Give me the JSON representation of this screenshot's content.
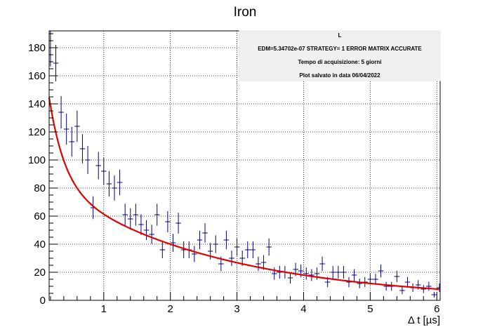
{
  "chart_data": {
    "type": "scatter",
    "title": "Iron",
    "xlabel": "Δ t [µs]",
    "ylabel": "",
    "xlim": [
      0.18,
      6.05
    ],
    "ylim": [
      0,
      192
    ],
    "x_ticks": [
      1,
      2,
      3,
      4,
      5,
      6
    ],
    "y_ticks": [
      0,
      20,
      40,
      60,
      80,
      100,
      120,
      140,
      160,
      180
    ],
    "grid": true,
    "bin_width": 0.08,
    "series": [
      {
        "kind": "points-with-errors",
        "color": "#000080",
        "x": [
          0.2,
          0.28,
          0.36,
          0.44,
          0.52,
          0.6,
          0.68,
          0.76,
          0.84,
          0.92,
          1.0,
          1.08,
          1.16,
          1.24,
          1.32,
          1.4,
          1.48,
          1.56,
          1.64,
          1.72,
          1.8,
          1.88,
          1.96,
          2.04,
          2.12,
          2.2,
          2.28,
          2.36,
          2.44,
          2.52,
          2.6,
          2.68,
          2.76,
          2.84,
          2.92,
          3.0,
          3.08,
          3.16,
          3.24,
          3.32,
          3.4,
          3.48,
          3.56,
          3.64,
          3.72,
          3.8,
          3.88,
          3.96,
          4.04,
          4.12,
          4.2,
          4.28,
          4.36,
          4.44,
          4.52,
          4.6,
          4.68,
          4.76,
          4.84,
          4.92,
          5.0,
          5.08,
          5.16,
          5.24,
          5.32,
          5.4,
          5.48,
          5.56,
          5.64,
          5.72,
          5.8,
          5.88,
          5.96,
          6.04
        ],
        "y": [
          180,
          169,
          134,
          122,
          113,
          124,
          108,
          100,
          66,
          96,
          92,
          83,
          80,
          84,
          61,
          58,
          61,
          54,
          50,
          47,
          61,
          36,
          56,
          41,
          55,
          36,
          36,
          33,
          43,
          48,
          35,
          40,
          26,
          43,
          30,
          38,
          30,
          36,
          36,
          26,
          27,
          38,
          19,
          20,
          20,
          16,
          22,
          21,
          19,
          18,
          19,
          26,
          13,
          20,
          20,
          20,
          13,
          18,
          12,
          13,
          15,
          15,
          21,
          10,
          10,
          17,
          7,
          13,
          9,
          11,
          8,
          10,
          4,
          9
        ]
      },
      {
        "kind": "fit-curve",
        "color": "#e00000",
        "model": "A*exp(-t/tau1) + B*exp(-t/tau2)",
        "A": 135,
        "tau1": 0.23,
        "B": 89,
        "tau2": 2.5
      }
    ],
    "stats_box": {
      "lines": [
        "L",
        "EDM=5.34702e-07     STRATEGY= 1      ERROR MATRIX ACCURATE",
        "Tempo di acquisizione: 5 giorni",
        "Plot salvato in data 06/04/2022"
      ],
      "placement": "top-right"
    }
  }
}
